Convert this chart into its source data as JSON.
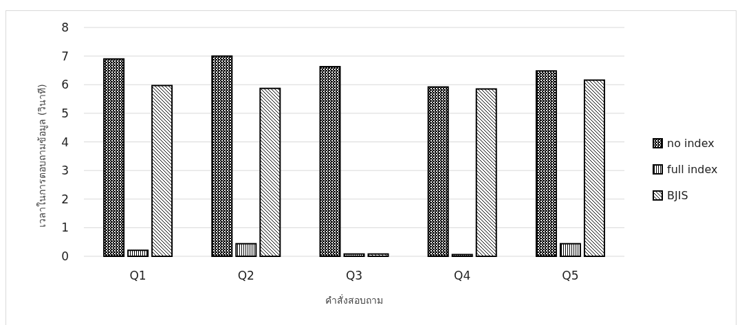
{
  "chart_data": {
    "type": "bar",
    "xlabel": "คำสั่งสอบถาม",
    "ylabel": "เวลาในการตอบถามข้อมูล (วินาที)",
    "categories": [
      "Q1",
      "Q2",
      "Q3",
      "Q4",
      "Q5"
    ],
    "series": [
      {
        "name": "no index",
        "color": "#000000",
        "values": [
          6.9,
          7.0,
          6.63,
          5.92,
          6.48
        ]
      },
      {
        "name": "full index",
        "color": "#000000",
        "values": [
          0.21,
          0.44,
          0.08,
          0.06,
          0.44
        ]
      },
      {
        "name": "BJIS",
        "color": "#000000",
        "values": [
          5.97,
          5.87,
          0.08,
          5.85,
          6.16
        ]
      }
    ],
    "ylim": [
      0,
      8
    ],
    "yticks": [
      0,
      1,
      2,
      3,
      4,
      5,
      6,
      7,
      8
    ],
    "grid": "y",
    "legend": "right"
  }
}
